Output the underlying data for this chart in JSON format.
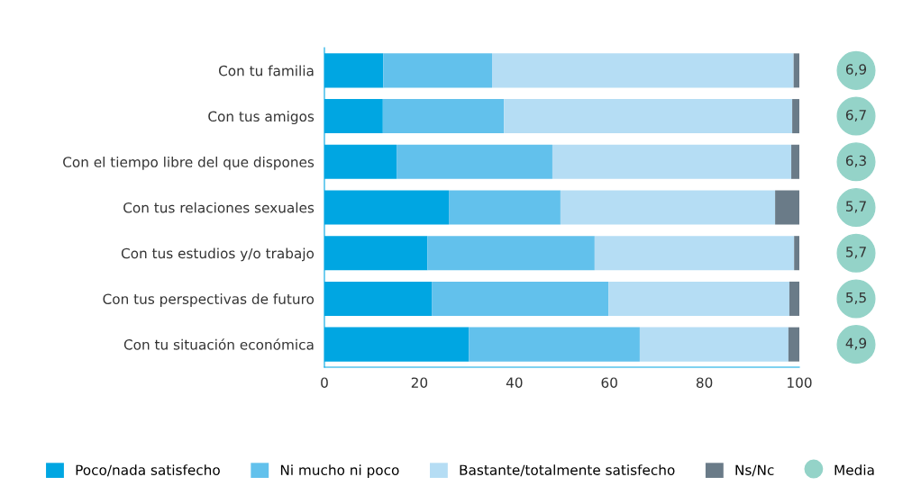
{
  "chart_data": [
    {
      "type": "bar",
      "orientation": "horizontal",
      "stacked": true,
      "categories": [
        "Con tu familia",
        "Con tus amigos",
        "Con el tiempo libre del que dispones",
        "Con tus relaciones sexuales",
        "Con tus estudios y/o trabajo",
        "Con tus perspectivas de futuro",
        "Con tu situación económica"
      ],
      "series": [
        {
          "name": "Poco/nada satisfecho",
          "color": "#00a6e2",
          "values": [
            12.4,
            12.3,
            15.2,
            26.2,
            21.7,
            22.6,
            30.4
          ]
        },
        {
          "name": "Ni mucho ni poco",
          "color": "#62c1ec",
          "values": [
            22.9,
            25.5,
            32.8,
            23.5,
            35.2,
            37.2,
            36.0
          ]
        },
        {
          "name": "Bastante/totalmente satisfecho",
          "color": "#b5ddf4",
          "values": [
            63.5,
            60.7,
            50.3,
            45.2,
            42.0,
            38.1,
            31.3
          ]
        },
        {
          "name": "Ns/Nc",
          "color": "#6a7b88",
          "values": [
            1.2,
            1.5,
            1.7,
            5.1,
            1.1,
            2.1,
            2.3
          ]
        }
      ],
      "xlim": [
        0,
        100
      ],
      "xticks": [
        0,
        20,
        40,
        60,
        80,
        100
      ],
      "grid": false,
      "legend": "bottom"
    },
    {
      "type": "other",
      "series": [
        {
          "name": "Media",
          "color": "#94d3c8",
          "values": [
            6.9,
            6.7,
            6.3,
            5.7,
            5.7,
            5.5,
            4.9
          ],
          "value_labels": [
            "6,9",
            "6,7",
            "6,3",
            "5,7",
            "5,7",
            "5,5",
            "4,9"
          ]
        }
      ]
    }
  ]
}
